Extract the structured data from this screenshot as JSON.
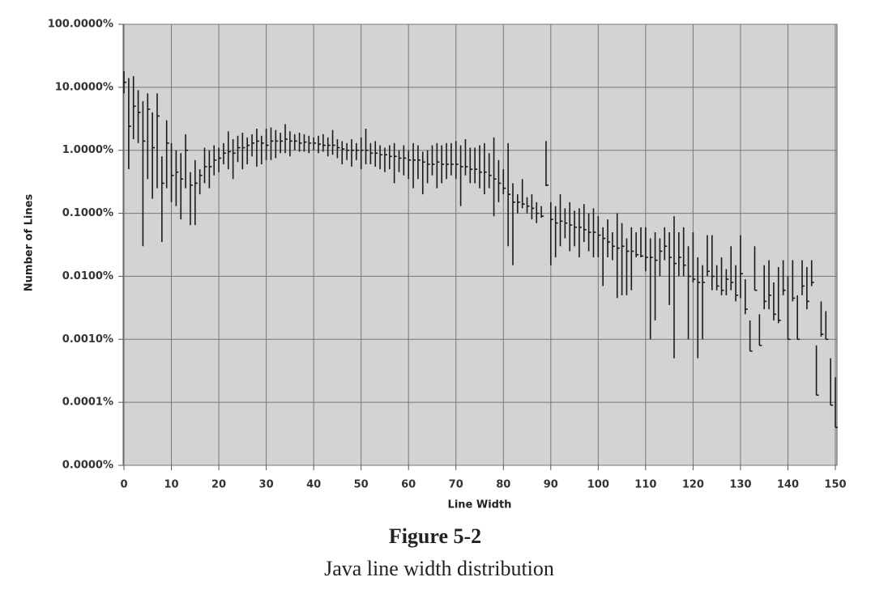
{
  "chart_data": {
    "type": "hilo",
    "y_label": "Number of Lines",
    "x_label": "Line Width",
    "caption_title": "Figure 5-2",
    "caption": "Java line width distribution",
    "log_scale": true,
    "grid": true,
    "color": "#1a1a1a",
    "ylim": [
      1e-05,
      100
    ],
    "yticks": [
      {
        "value": 1e-05,
        "label": "0.0000%"
      },
      {
        "value": 0.0001,
        "label": "0.0001%"
      },
      {
        "value": 0.001,
        "label": "0.0010%"
      },
      {
        "value": 0.01,
        "label": "0.0100%"
      },
      {
        "value": 0.1,
        "label": "0.1000%"
      },
      {
        "value": 1,
        "label": "1.0000%"
      },
      {
        "value": 10,
        "label": "10.0000%"
      },
      {
        "value": 100,
        "label": "100.0000%"
      }
    ],
    "xlim": [
      0,
      150
    ],
    "xticks": [
      0,
      10,
      20,
      30,
      40,
      50,
      60,
      70,
      80,
      90,
      100,
      110,
      120,
      130,
      140,
      150
    ],
    "x": [
      0,
      1,
      2,
      3,
      4,
      5,
      6,
      7,
      8,
      9,
      10,
      11,
      12,
      13,
      14,
      15,
      16,
      17,
      18,
      19,
      20,
      21,
      22,
      23,
      24,
      25,
      26,
      27,
      28,
      29,
      30,
      31,
      32,
      33,
      34,
      35,
      36,
      37,
      38,
      39,
      40,
      41,
      42,
      43,
      44,
      45,
      46,
      47,
      48,
      49,
      50,
      51,
      52,
      53,
      54,
      55,
      56,
      57,
      58,
      59,
      60,
      61,
      62,
      63,
      64,
      65,
      66,
      67,
      68,
      69,
      70,
      71,
      72,
      73,
      74,
      75,
      76,
      77,
      78,
      79,
      80,
      81,
      82,
      83,
      84,
      85,
      86,
      87,
      88,
      89,
      90,
      91,
      92,
      93,
      94,
      95,
      96,
      97,
      98,
      99,
      100,
      101,
      102,
      103,
      104,
      105,
      106,
      107,
      108,
      109,
      110,
      111,
      112,
      113,
      114,
      115,
      116,
      117,
      118,
      119,
      120,
      121,
      122,
      123,
      124,
      125,
      126,
      127,
      128,
      129,
      130,
      131,
      132,
      133,
      134,
      135,
      136,
      137,
      138,
      139,
      140,
      141,
      142,
      143,
      144,
      145,
      146,
      147,
      148,
      149,
      150
    ],
    "high": [
      18,
      14,
      15,
      9,
      6,
      8,
      4,
      8,
      0.8,
      3,
      1.3,
      1,
      0.9,
      1.8,
      0.45,
      0.7,
      0.5,
      1.1,
      1,
      1.2,
      1.1,
      1.3,
      2,
      1.5,
      1.7,
      1.9,
      1.6,
      1.8,
      2.2,
      1.7,
      2.2,
      2.3,
      2.1,
      1.9,
      2.6,
      2,
      1.8,
      1.9,
      1.8,
      1.7,
      1.6,
      1.7,
      1.8,
      1.6,
      2.1,
      1.5,
      1.4,
      1.3,
      1.5,
      1.3,
      1.6,
      2.2,
      1.3,
      1.4,
      1.2,
      1.1,
      1.2,
      1.3,
      1,
      1.2,
      1,
      1.3,
      1.2,
      0.95,
      1,
      1.2,
      1.3,
      1.2,
      1.3,
      1.3,
      1.4,
      1.2,
      1.5,
      1.1,
      1.1,
      1.2,
      1.3,
      0.9,
      1.6,
      0.7,
      0.5,
      1.3,
      0.3,
      0.2,
      0.35,
      0.18,
      0.2,
      0.15,
      0.13,
      1.4,
      0.15,
      0.13,
      0.2,
      0.12,
      0.15,
      0.11,
      0.12,
      0.14,
      0.1,
      0.12,
      0.09,
      0.06,
      0.08,
      0.05,
      0.1,
      0.07,
      0.04,
      0.06,
      0.05,
      0.06,
      0.06,
      0.04,
      0.05,
      0.04,
      0.06,
      0.05,
      0.09,
      0.05,
      0.06,
      0.03,
      0.05,
      0.02,
      0.015,
      0.045,
      0.045,
      0.015,
      0.02,
      0.013,
      0.03,
      0.015,
      0.045,
      0.009,
      0.002,
      0.03,
      0.0025,
      0.015,
      0.018,
      0.008,
      0.014,
      0.018,
      0.01,
      0.018,
      0.005,
      0.018,
      0.014,
      0.018,
      0.0008,
      0.004,
      0.0028,
      0.0005,
      0.00025
    ],
    "low": [
      8,
      0.5,
      1.5,
      1.3,
      0.03,
      0.35,
      0.17,
      0.25,
      0.035,
      0.25,
      0.15,
      0.13,
      0.08,
      0.25,
      0.065,
      0.065,
      0.2,
      0.3,
      0.25,
      0.4,
      0.45,
      0.6,
      0.5,
      0.35,
      0.65,
      0.5,
      0.6,
      0.8,
      0.55,
      0.6,
      0.7,
      0.7,
      0.75,
      0.9,
      0.9,
      0.8,
      1,
      0.95,
      0.95,
      0.9,
      1,
      0.9,
      0.95,
      0.8,
      0.85,
      0.75,
      0.6,
      0.7,
      0.55,
      0.7,
      0.5,
      0.6,
      0.6,
      0.55,
      0.5,
      0.45,
      0.5,
      0.3,
      0.45,
      0.4,
      0.35,
      0.25,
      0.35,
      0.2,
      0.3,
      0.4,
      0.25,
      0.3,
      0.35,
      0.4,
      0.35,
      0.13,
      0.4,
      0.3,
      0.3,
      0.25,
      0.2,
      0.25,
      0.09,
      0.15,
      0.2,
      0.03,
      0.015,
      0.1,
      0.12,
      0.1,
      0.08,
      0.07,
      0.085,
      0.27,
      0.015,
      0.02,
      0.03,
      0.04,
      0.025,
      0.03,
      0.02,
      0.035,
      0.025,
      0.02,
      0.02,
      0.007,
      0.02,
      0.018,
      0.0045,
      0.005,
      0.005,
      0.006,
      0.02,
      0.02,
      0.012,
      0.001,
      0.002,
      0.01,
      0.018,
      0.0035,
      0.0005,
      0.01,
      0.01,
      0.001,
      0.008,
      0.0005,
      0.001,
      0.01,
      0.006,
      0.006,
      0.005,
      0.005,
      0.006,
      0.004,
      0.0045,
      0.0025,
      0.00065,
      0.006,
      0.0008,
      0.003,
      0.003,
      0.002,
      0.0018,
      0.005,
      0.001,
      0.004,
      0.001,
      0.005,
      0.003,
      0.007,
      0.00013,
      0.0011,
      0.001,
      9e-05,
      4e-05
    ],
    "values": [
      12,
      2.4,
      5,
      4,
      1.4,
      4.5,
      1.1,
      3.5,
      0.3,
      1.3,
      0.4,
      0.45,
      0.35,
      1,
      0.28,
      0.3,
      0.4,
      0.55,
      0.55,
      0.7,
      0.75,
      0.9,
      0.95,
      0.9,
      1.1,
      1.1,
      1.2,
      1.3,
      1.4,
      1.3,
      1.2,
      1.4,
      1.4,
      1.4,
      1.5,
      1.4,
      1.4,
      1.3,
      1.35,
      1.3,
      1.3,
      1.25,
      1.2,
      1.2,
      1.2,
      1.1,
      1.05,
      1,
      1,
      1,
      1,
      1,
      0.9,
      0.9,
      0.85,
      0.85,
      0.8,
      0.8,
      0.75,
      0.75,
      0.7,
      0.7,
      0.7,
      0.65,
      0.6,
      0.6,
      0.65,
      0.6,
      0.6,
      0.6,
      0.6,
      0.55,
      0.55,
      0.5,
      0.5,
      0.45,
      0.45,
      0.4,
      0.35,
      0.3,
      0.25,
      0.2,
      0.15,
      0.15,
      0.14,
      0.13,
      0.12,
      0.1,
      0.09,
      0.28,
      0.08,
      0.07,
      0.075,
      0.07,
      0.065,
      0.06,
      0.06,
      0.055,
      0.05,
      0.05,
      0.045,
      0.04,
      0.035,
      0.03,
      0.028,
      0.03,
      0.025,
      0.025,
      0.022,
      0.021,
      0.02,
      0.02,
      0.018,
      0.025,
      0.03,
      0.02,
      0.016,
      0.02,
      0.015,
      0.01,
      0.009,
      0.008,
      0.008,
      0.012,
      0.01,
      0.007,
      0.006,
      0.009,
      0.008,
      0.005,
      0.011,
      0.003,
      0.00065,
      0.006,
      0.0008,
      0.004,
      0.005,
      0.0025,
      0.002,
      0.006,
      0.001,
      0.0045,
      0.001,
      0.007,
      0.004,
      0.008,
      0.00013,
      0.0012,
      0.001,
      9e-05,
      4e-05
    ]
  }
}
